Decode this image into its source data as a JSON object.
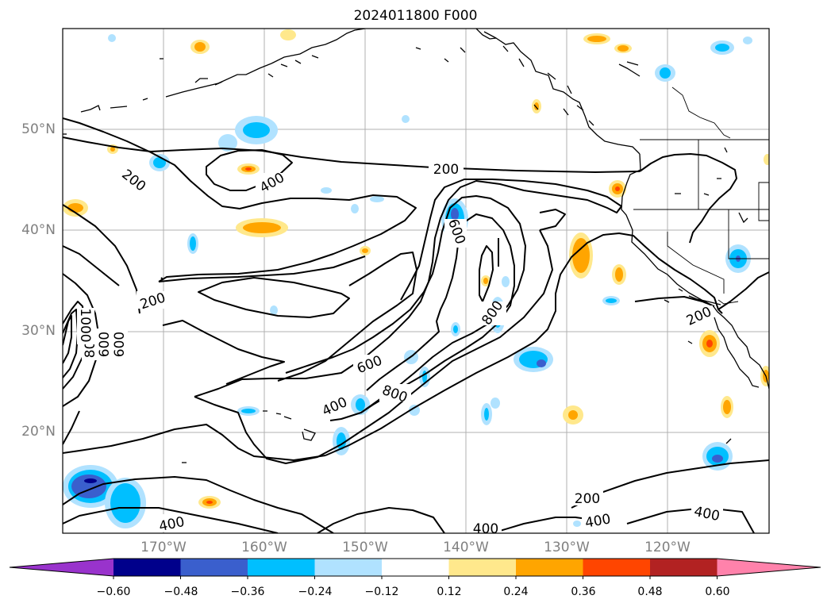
{
  "title": "2024011800 F000",
  "lat_labels": [
    "50°N",
    "40°N",
    "30°N",
    "20°N"
  ],
  "lon_labels": [
    "170°W",
    "160°W",
    "150°W",
    "140°W",
    "130°W",
    "120°W"
  ],
  "contour_labels": [
    "200",
    "200",
    "200",
    "200",
    "200",
    "400",
    "400",
    "400",
    "400",
    "400",
    "400",
    "600",
    "600",
    "600",
    "800",
    "800",
    "800",
    "1000"
  ],
  "colorbar": {
    "ticks": [
      "−0.60",
      "−0.48",
      "−0.36",
      "−0.24",
      "−0.12",
      "0.12",
      "0.24",
      "0.36",
      "0.48",
      "0.60"
    ],
    "colors": [
      "#9933cc",
      "#00008b",
      "#3a5fcd",
      "#00bfff",
      "#b0e2ff",
      "#ffffff",
      "#ffe88c",
      "#ffa500",
      "#ff4500",
      "#b22222",
      "#ff82ab"
    ]
  }
}
